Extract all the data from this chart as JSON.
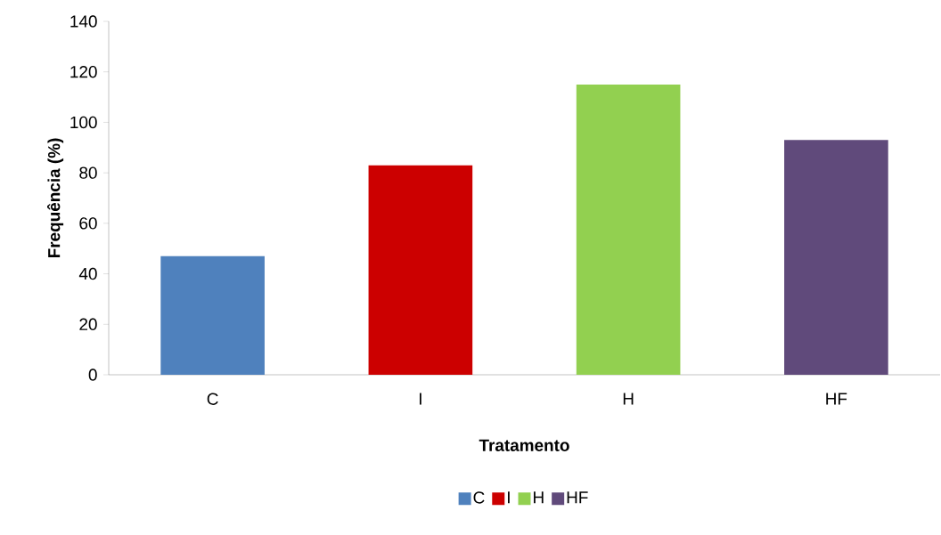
{
  "chart_data": {
    "type": "bar",
    "xlabel": "Tratamento",
    "ylabel": "Frequência (%)",
    "categories": [
      "C",
      "I",
      "H",
      "HF"
    ],
    "series": [
      {
        "name": "C",
        "color": "#4f81bd",
        "values": [
          47,
          null,
          null,
          null
        ]
      },
      {
        "name": "I",
        "color": "#cc0000",
        "values": [
          null,
          83,
          null,
          null
        ]
      },
      {
        "name": "H",
        "color": "#92d050",
        "values": [
          null,
          null,
          115,
          null
        ]
      },
      {
        "name": "HF",
        "color": "#604a7b",
        "values": [
          null,
          null,
          null,
          93
        ]
      }
    ],
    "ylim": [
      0,
      140
    ],
    "yticks": [
      0,
      20,
      40,
      60,
      80,
      100,
      120,
      140
    ],
    "grid": false,
    "legend": "bottom"
  }
}
